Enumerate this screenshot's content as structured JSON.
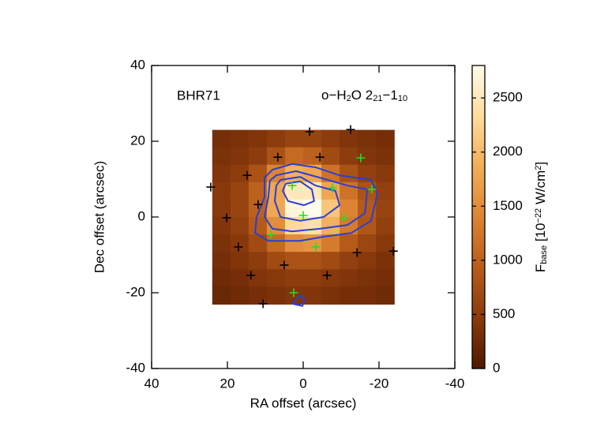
{
  "chart_data": {
    "type": "heatmap",
    "annotation_left": "BHR71",
    "annotation_right": [
      {
        "text": "o−H"
      },
      {
        "text": "2",
        "sub": true
      },
      {
        "text": "O 2"
      },
      {
        "text": "21",
        "sub": true
      },
      {
        "text": "−1"
      },
      {
        "text": "10",
        "sub": true
      }
    ],
    "xlabel": "RA offset (arcsec)",
    "ylabel": "Dec offset (arcsec)",
    "xlim": [
      40,
      -40
    ],
    "ylim": [
      -40,
      40
    ],
    "xticks": [
      40,
      20,
      0,
      -20,
      -40
    ],
    "yticks": [
      -40,
      -20,
      0,
      20,
      40
    ],
    "image": {
      "xrange": [
        24,
        -24
      ],
      "yrange": [
        23,
        -23
      ],
      "values": [
        [
          300,
          350,
          400,
          500,
          600,
          600,
          500,
          400,
          350,
          300
        ],
        [
          350,
          400,
          500,
          800,
          1100,
          1000,
          700,
          500,
          400,
          350
        ],
        [
          400,
          500,
          800,
          1400,
          1900,
          1800,
          1200,
          800,
          550,
          450
        ],
        [
          450,
          600,
          1000,
          1800,
          2500,
          2500,
          1800,
          1200,
          800,
          550
        ],
        [
          450,
          600,
          1000,
          1800,
          2700,
          2800,
          2100,
          1400,
          900,
          600
        ],
        [
          400,
          550,
          900,
          1500,
          2300,
          2400,
          1900,
          1300,
          850,
          550
        ],
        [
          350,
          450,
          700,
          1100,
          1500,
          1600,
          1300,
          900,
          650,
          450
        ],
        [
          300,
          400,
          500,
          700,
          800,
          800,
          700,
          550,
          450,
          350
        ],
        [
          250,
          300,
          400,
          450,
          500,
          500,
          450,
          400,
          350,
          300
        ],
        [
          200,
          250,
          300,
          350,
          400,
          400,
          350,
          300,
          300,
          250
        ]
      ]
    },
    "colormap": [
      "#4f1800",
      "#8a3a0c",
      "#b85c1a",
      "#dc8434",
      "#f2ad58",
      "#ffdc9c",
      "#fffcec"
    ],
    "clim": [
      0,
      2800
    ],
    "cticks": [
      0,
      500,
      1000,
      1500,
      2000,
      2500
    ],
    "clabel": [
      {
        "text": "F"
      },
      {
        "text": "base",
        "sub": true
      },
      {
        "text": " [10"
      },
      {
        "text": "−22",
        "sup": true
      },
      {
        "text": " W/cm"
      },
      {
        "text": "2",
        "sup": true
      },
      {
        "text": "]"
      }
    ],
    "contour_color": "#2a3fd6",
    "contours": [
      {
        "x": [
          8.1,
          2.9,
          -3.3,
          -9.6,
          -17.9,
          -19.6,
          -17.9,
          -12.7,
          -5.4,
          0.8,
          9.2,
          12.7,
          12.3,
          10.2,
          10.2
        ],
        "y": [
          12.5,
          14.0,
          13.1,
          11.0,
          9.8,
          6.3,
          -1.0,
          -4.2,
          -5.2,
          -6.3,
          -6.3,
          -4.2,
          0,
          5.2,
          10.4
        ]
      },
      {
        "x": [
          7.1,
          1.9,
          -4.4,
          -11.7,
          -16.9,
          -16.3,
          -11.7,
          -4.4,
          2.9,
          8.1,
          10.2,
          9.2,
          8.8
        ],
        "y": [
          11.0,
          12.1,
          10.4,
          8.3,
          7.3,
          1.0,
          -2.1,
          -3.1,
          -3.8,
          -3.1,
          0,
          5.2,
          9.6
        ]
      },
      {
        "x": [
          6.0,
          0.8,
          -3.3,
          -8.5,
          -9.6,
          -5.4,
          0.8,
          6.0,
          7.5,
          7.1
        ],
        "y": [
          9.8,
          10.6,
          8.3,
          6.9,
          3.1,
          0,
          -1.0,
          0,
          4.2,
          8.3
        ]
      },
      {
        "x": [
          4.6,
          0.8,
          -2.3,
          -2.9,
          -0.2,
          4.0,
          5.4
        ],
        "y": [
          8.8,
          9.4,
          7.3,
          4.2,
          3.1,
          4.2,
          6.9
        ]
      },
      {
        "x": [
          2.9,
          0.8,
          -0.4,
          0.2
        ],
        "y": [
          -22.9,
          -20.6,
          -21.9,
          -23.5
        ]
      }
    ],
    "series": [
      {
        "color": "#000000",
        "x": [
          -1.7,
          -12.5,
          6.7,
          -4.4,
          14.8,
          24.4,
          11.9,
          20.2,
          17.1,
          -23.8,
          -14.2,
          5.0,
          13.8,
          -6.3,
          10.6
        ],
        "y": [
          22.5,
          23.1,
          15.8,
          15.8,
          11.0,
          7.9,
          3.3,
          -0.2,
          -7.9,
          -9.0,
          -9.4,
          -12.7,
          -15.4,
          -15.4,
          -22.9
        ]
      },
      {
        "color": "#22e022",
        "x": [
          -15.2,
          2.9,
          -7.7,
          -18.1,
          0,
          -10.8,
          8.5,
          -3.3,
          2.5
        ],
        "y": [
          15.6,
          8.3,
          7.7,
          7.3,
          0.4,
          -0.2,
          -4.6,
          -7.9,
          -20.0
        ]
      }
    ]
  }
}
